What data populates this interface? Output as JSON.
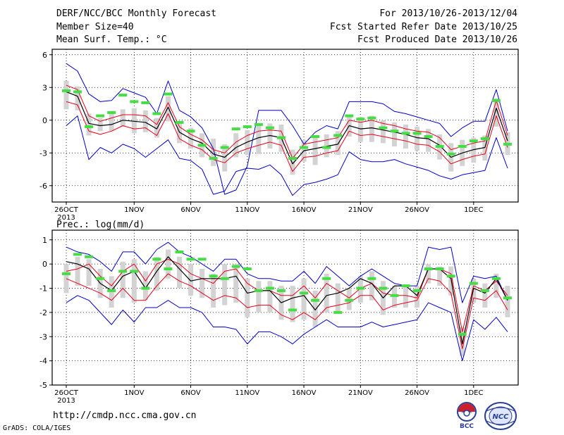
{
  "header": {
    "title": "DERF/NCC/BCC Monthly Forecast",
    "member_size": "Member Size=40",
    "variable_label": "Mean Surf. Temp.: °C",
    "period": "For 2013/10/26-2013/12/04",
    "fcst_started": "Fcst Started Refer Date 2013/10/25",
    "fcst_produced": "Fcst Produced Date 2013/10/26"
  },
  "footer": {
    "url": "http://cmdp.ncc.cma.gov.cn",
    "credit": "GrADS: COLA/IGES",
    "logo_bcc": "BCC",
    "logo_ncc": "NCC"
  },
  "colors": {
    "mean": "#000000",
    "spread": "#e8001c",
    "range": "#0000cc",
    "box": "#d3d3d3",
    "obs": "#44dd44"
  },
  "x_labels": [
    {
      "day": 1,
      "text": "26OCT"
    },
    {
      "day": 7,
      "text": "1NOV"
    },
    {
      "day": 12,
      "text": "6NOV"
    },
    {
      "day": 17,
      "text": "11NOV"
    },
    {
      "day": 22,
      "text": "16NOV"
    },
    {
      "day": 27,
      "text": "21NOV"
    },
    {
      "day": 32,
      "text": "26NOV"
    },
    {
      "day": 37,
      "text": "1DEC"
    }
  ],
  "x_sublabel": "2013",
  "chart_data": [
    {
      "type": "line",
      "title": "Mean Surf. Temp.: °C",
      "x": [
        1,
        2,
        3,
        4,
        5,
        6,
        7,
        8,
        9,
        10,
        11,
        12,
        13,
        14,
        15,
        16,
        17,
        18,
        19,
        20,
        21,
        22,
        23,
        24,
        25,
        26,
        27,
        28,
        29,
        30,
        31,
        32,
        33,
        34,
        35,
        36,
        37,
        38,
        39,
        40
      ],
      "ylim": [
        -7.5,
        6.5
      ],
      "yticks": [
        -6,
        -3,
        0,
        3,
        6
      ],
      "grid": true,
      "series": [
        {
          "role": "max",
          "values": [
            5.2,
            4.5,
            2.4,
            1.7,
            1.8,
            2.9,
            2.5,
            2.1,
            0.6,
            3.6,
            0.9,
            0.3,
            -0.7,
            -2.6,
            -6.8,
            -6.4,
            -4.2,
            0.9,
            0.9,
            0.9,
            -0.5,
            -2.2,
            -1.1,
            -0.5,
            -0.8,
            1.7,
            1.7,
            1.7,
            1.5,
            0.8,
            0.6,
            0.3,
            0.0,
            -0.3,
            -1.5,
            -0.7,
            -0.1,
            -0.1,
            2.8,
            -1.0
          ]
        },
        {
          "role": "upper",
          "values": [
            3.2,
            2.8,
            0.4,
            -0.1,
            0.2,
            0.5,
            0.5,
            0.4,
            -0.4,
            1.6,
            -0.6,
            -1.3,
            -1.8,
            -2.7,
            -3.0,
            -2.0,
            -1.4,
            -1.0,
            -0.9,
            -1.0,
            -3.5,
            -2.2,
            -2.0,
            -1.8,
            -1.6,
            0.0,
            -0.2,
            0.0,
            -0.3,
            -0.5,
            -0.8,
            -1.0,
            -1.1,
            -1.6,
            -2.7,
            -2.4,
            -2.1,
            -1.9,
            1.8,
            -1.4
          ]
        },
        {
          "role": "mean",
          "values": [
            2.6,
            2.2,
            -0.3,
            -0.5,
            -0.4,
            0.0,
            -0.1,
            -0.2,
            -0.8,
            1.2,
            -1.1,
            -1.7,
            -2.1,
            -3.1,
            -3.4,
            -2.5,
            -2.0,
            -1.6,
            -1.4,
            -1.6,
            -4.0,
            -2.8,
            -2.6,
            -2.4,
            -2.2,
            -0.5,
            -0.8,
            -0.7,
            -0.9,
            -1.1,
            -1.3,
            -1.6,
            -1.7,
            -2.3,
            -3.4,
            -3.0,
            -2.7,
            -2.5,
            1.1,
            -1.9
          ]
        },
        {
          "role": "lower",
          "values": [
            1.7,
            1.4,
            -1.0,
            -1.3,
            -1.0,
            -0.5,
            -0.8,
            -0.7,
            -1.4,
            0.6,
            -1.7,
            -2.3,
            -2.7,
            -3.6,
            -3.9,
            -3.0,
            -2.6,
            -2.3,
            -2.0,
            -2.3,
            -4.7,
            -3.4,
            -3.3,
            -3.0,
            -2.8,
            -1.0,
            -1.4,
            -1.3,
            -1.5,
            -1.7,
            -1.9,
            -2.2,
            -2.3,
            -2.9,
            -4.0,
            -3.6,
            -3.3,
            -3.1,
            0.4,
            -2.5
          ]
        },
        {
          "role": "min",
          "values": [
            -0.5,
            0.4,
            -3.6,
            -2.5,
            -3.0,
            -2.2,
            -2.6,
            -3.4,
            -2.6,
            -1.8,
            -3.5,
            -3.7,
            -4.5,
            -6.8,
            -6.5,
            -4.7,
            -4.4,
            -4.5,
            -4.1,
            -5.0,
            -6.9,
            -5.9,
            -5.7,
            -5.4,
            -5.0,
            -2.9,
            -3.6,
            -3.8,
            -3.8,
            -3.6,
            -4.0,
            -4.3,
            -4.6,
            -5.1,
            -5.4,
            -5.0,
            -4.8,
            -4.6,
            -1.6,
            -4.4
          ]
        },
        {
          "role": "box_top",
          "values": [
            3.6,
            3.1,
            0.6,
            0.2,
            0.6,
            1.0,
            1.1,
            0.9,
            0.2,
            2.2,
            -0.2,
            -0.7,
            -1.2,
            -1.7,
            -2.2,
            -1.2,
            -0.9,
            -0.4,
            -0.3,
            -0.4,
            -2.7,
            -1.8,
            -1.6,
            -1.3,
            -1.0,
            0.5,
            0.3,
            0.4,
            0.0,
            -0.2,
            -0.4,
            -0.6,
            -0.8,
            -1.3,
            -2.1,
            -1.8,
            -1.6,
            -1.4,
            2.0,
            -1.1
          ]
        },
        {
          "role": "box_bottom",
          "values": [
            1.0,
            0.9,
            -1.4,
            -1.0,
            -1.0,
            -0.6,
            -1.2,
            -1.1,
            -1.6,
            -0.1,
            -2.1,
            -2.6,
            -3.4,
            -4.2,
            -4.7,
            -3.4,
            -3.2,
            -3.1,
            -2.6,
            -2.9,
            -5.0,
            -3.8,
            -4.1,
            -3.4,
            -3.2,
            -1.5,
            -2.0,
            -2.0,
            -2.1,
            -2.4,
            -2.6,
            -2.8,
            -2.9,
            -3.6,
            -4.7,
            -4.2,
            -3.9,
            -3.7,
            -0.6,
            -3.2
          ]
        },
        {
          "role": "observed",
          "values": [
            2.7,
            2.6,
            -0.6,
            0.4,
            0.7,
            2.3,
            1.7,
            1.6,
            0.6,
            2.4,
            -0.2,
            -1.0,
            -2.3,
            -3.5,
            -2.5,
            -0.8,
            -0.6,
            -0.4,
            -0.7,
            -1.6,
            -3.5,
            -2.5,
            -1.5,
            -2.5,
            -1.4,
            0.4,
            0.1,
            0.2,
            -0.7,
            -1.0,
            -1.2,
            -1.2,
            -1.5,
            -2.4,
            -3.1,
            -2.4,
            -1.9,
            -1.7,
            1.8,
            -2.2
          ]
        }
      ]
    },
    {
      "type": "line",
      "title": "Prec.: log(mm/d)",
      "x": [
        1,
        2,
        3,
        4,
        5,
        6,
        7,
        8,
        9,
        10,
        11,
        12,
        13,
        14,
        15,
        16,
        17,
        18,
        19,
        20,
        21,
        22,
        23,
        24,
        25,
        26,
        27,
        28,
        29,
        30,
        31,
        32,
        33,
        34,
        35,
        36,
        37,
        38,
        39,
        40
      ],
      "ylim": [
        -5,
        1.4
      ],
      "yticks": [
        -5,
        -4,
        -3,
        -2,
        -1,
        0,
        1
      ],
      "grid": true,
      "series": [
        {
          "role": "max",
          "values": [
            0.7,
            0.5,
            0.4,
            0.1,
            -0.3,
            0.5,
            0.5,
            0.0,
            0.6,
            0.9,
            0.5,
            0.3,
            0.0,
            -0.3,
            0.2,
            0.2,
            -0.4,
            -0.6,
            -0.6,
            -0.7,
            -0.7,
            -0.3,
            -0.8,
            -0.1,
            -0.5,
            -0.9,
            -0.5,
            -0.2,
            -0.5,
            -0.8,
            -0.9,
            -0.9,
            0.7,
            0.6,
            0.7,
            -1.6,
            -0.5,
            -0.6,
            -0.5,
            -1.5
          ]
        },
        {
          "role": "upper",
          "values": [
            -0.3,
            -0.2,
            0.0,
            -0.5,
            -0.9,
            -0.3,
            0.0,
            -0.7,
            0.0,
            0.2,
            0.0,
            -0.4,
            -0.6,
            -0.8,
            -0.3,
            -0.2,
            -0.8,
            -1.1,
            -1.1,
            -1.3,
            -1.3,
            -0.9,
            -1.4,
            -0.8,
            -1.1,
            -1.4,
            -1.0,
            -0.8,
            -1.2,
            -1.3,
            -1.3,
            -1.4,
            -0.2,
            -0.2,
            -0.4,
            -2.8,
            -0.9,
            -1.1,
            -0.7,
            -1.3
          ]
        },
        {
          "role": "mean",
          "values": [
            0.1,
            0.0,
            -0.2,
            -0.8,
            -1.1,
            -0.5,
            -0.3,
            -1.0,
            -0.3,
            0.3,
            -0.2,
            -0.7,
            -0.6,
            -0.6,
            -0.6,
            -0.5,
            -1.2,
            -1.1,
            -1.1,
            -1.6,
            -1.4,
            -1.3,
            -1.9,
            -1.3,
            -1.2,
            -1.0,
            -0.6,
            -0.8,
            -1.4,
            -0.9,
            -0.9,
            -1.3,
            -0.2,
            -0.2,
            -0.6,
            -3.3,
            -1.0,
            -1.2,
            -0.6,
            -1.5
          ]
        },
        {
          "role": "lower",
          "values": [
            -0.6,
            -0.8,
            -1.0,
            -1.2,
            -1.5,
            -1.0,
            -1.5,
            -1.5,
            -0.9,
            -0.4,
            -0.7,
            -0.9,
            -1.2,
            -1.5,
            -1.3,
            -1.4,
            -1.8,
            -1.7,
            -1.7,
            -2.1,
            -2.3,
            -2.0,
            -2.3,
            -1.8,
            -1.7,
            -1.6,
            -1.3,
            -1.3,
            -1.9,
            -1.7,
            -1.6,
            -1.5,
            -0.6,
            -0.7,
            -1.2,
            -3.5,
            -1.4,
            -1.5,
            -1.1,
            -1.9
          ]
        },
        {
          "role": "min",
          "values": [
            -1.6,
            -1.3,
            -1.5,
            -2.0,
            -2.5,
            -1.9,
            -2.4,
            -1.8,
            -1.8,
            -1.5,
            -1.8,
            -1.8,
            -2.0,
            -2.6,
            -2.6,
            -2.7,
            -3.3,
            -2.8,
            -2.8,
            -3.0,
            -3.3,
            -2.9,
            -2.6,
            -2.3,
            -2.6,
            -2.6,
            -2.6,
            -2.4,
            -2.6,
            -2.5,
            -2.4,
            -2.3,
            -1.6,
            -1.8,
            -2.0,
            -4.0,
            -2.3,
            -2.7,
            -2.2,
            -2.8
          ]
        },
        {
          "role": "box_top",
          "values": [
            0.0,
            0.3,
            0.2,
            -0.2,
            -0.5,
            0.1,
            0.2,
            -0.3,
            0.3,
            0.6,
            0.3,
            0.0,
            -0.2,
            -0.4,
            0.0,
            0.0,
            -0.6,
            -0.7,
            -0.7,
            -0.9,
            -0.9,
            -0.6,
            -1.1,
            -0.4,
            -0.8,
            -1.0,
            -0.5,
            -0.3,
            -0.7,
            -0.9,
            -0.9,
            -0.9,
            0.0,
            -0.1,
            -0.1,
            -2.6,
            -0.6,
            -0.8,
            -0.4,
            -0.9
          ]
        },
        {
          "role": "box_bottom",
          "values": [
            -1.2,
            -0.9,
            -0.9,
            -1.4,
            -1.8,
            -1.4,
            -1.6,
            -1.5,
            -1.1,
            -0.6,
            -1.0,
            -1.3,
            -1.4,
            -1.8,
            -1.7,
            -1.6,
            -2.2,
            -2.0,
            -2.0,
            -2.3,
            -2.4,
            -2.3,
            -2.6,
            -2.0,
            -2.0,
            -1.9,
            -1.6,
            -1.5,
            -2.1,
            -1.8,
            -1.8,
            -1.8,
            -0.8,
            -0.9,
            -1.3,
            -3.8,
            -1.6,
            -1.8,
            -1.4,
            -2.2
          ]
        },
        {
          "role": "observed",
          "values": [
            -0.4,
            0.4,
            0.3,
            -0.6,
            -1.1,
            -0.3,
            -0.3,
            -1.0,
            0.2,
            -0.2,
            0.5,
            0.2,
            0.2,
            -0.5,
            -0.6,
            -0.1,
            -0.2,
            -1.1,
            -1.0,
            -1.1,
            -1.9,
            -1.2,
            -1.5,
            -0.6,
            -2.0,
            -1.5,
            -1.0,
            -0.6,
            -1.0,
            -1.3,
            -0.9,
            -1.1,
            -0.2,
            -0.2,
            -0.5,
            -2.9,
            -0.8,
            -1.1,
            -0.6,
            -1.4
          ]
        }
      ]
    }
  ]
}
